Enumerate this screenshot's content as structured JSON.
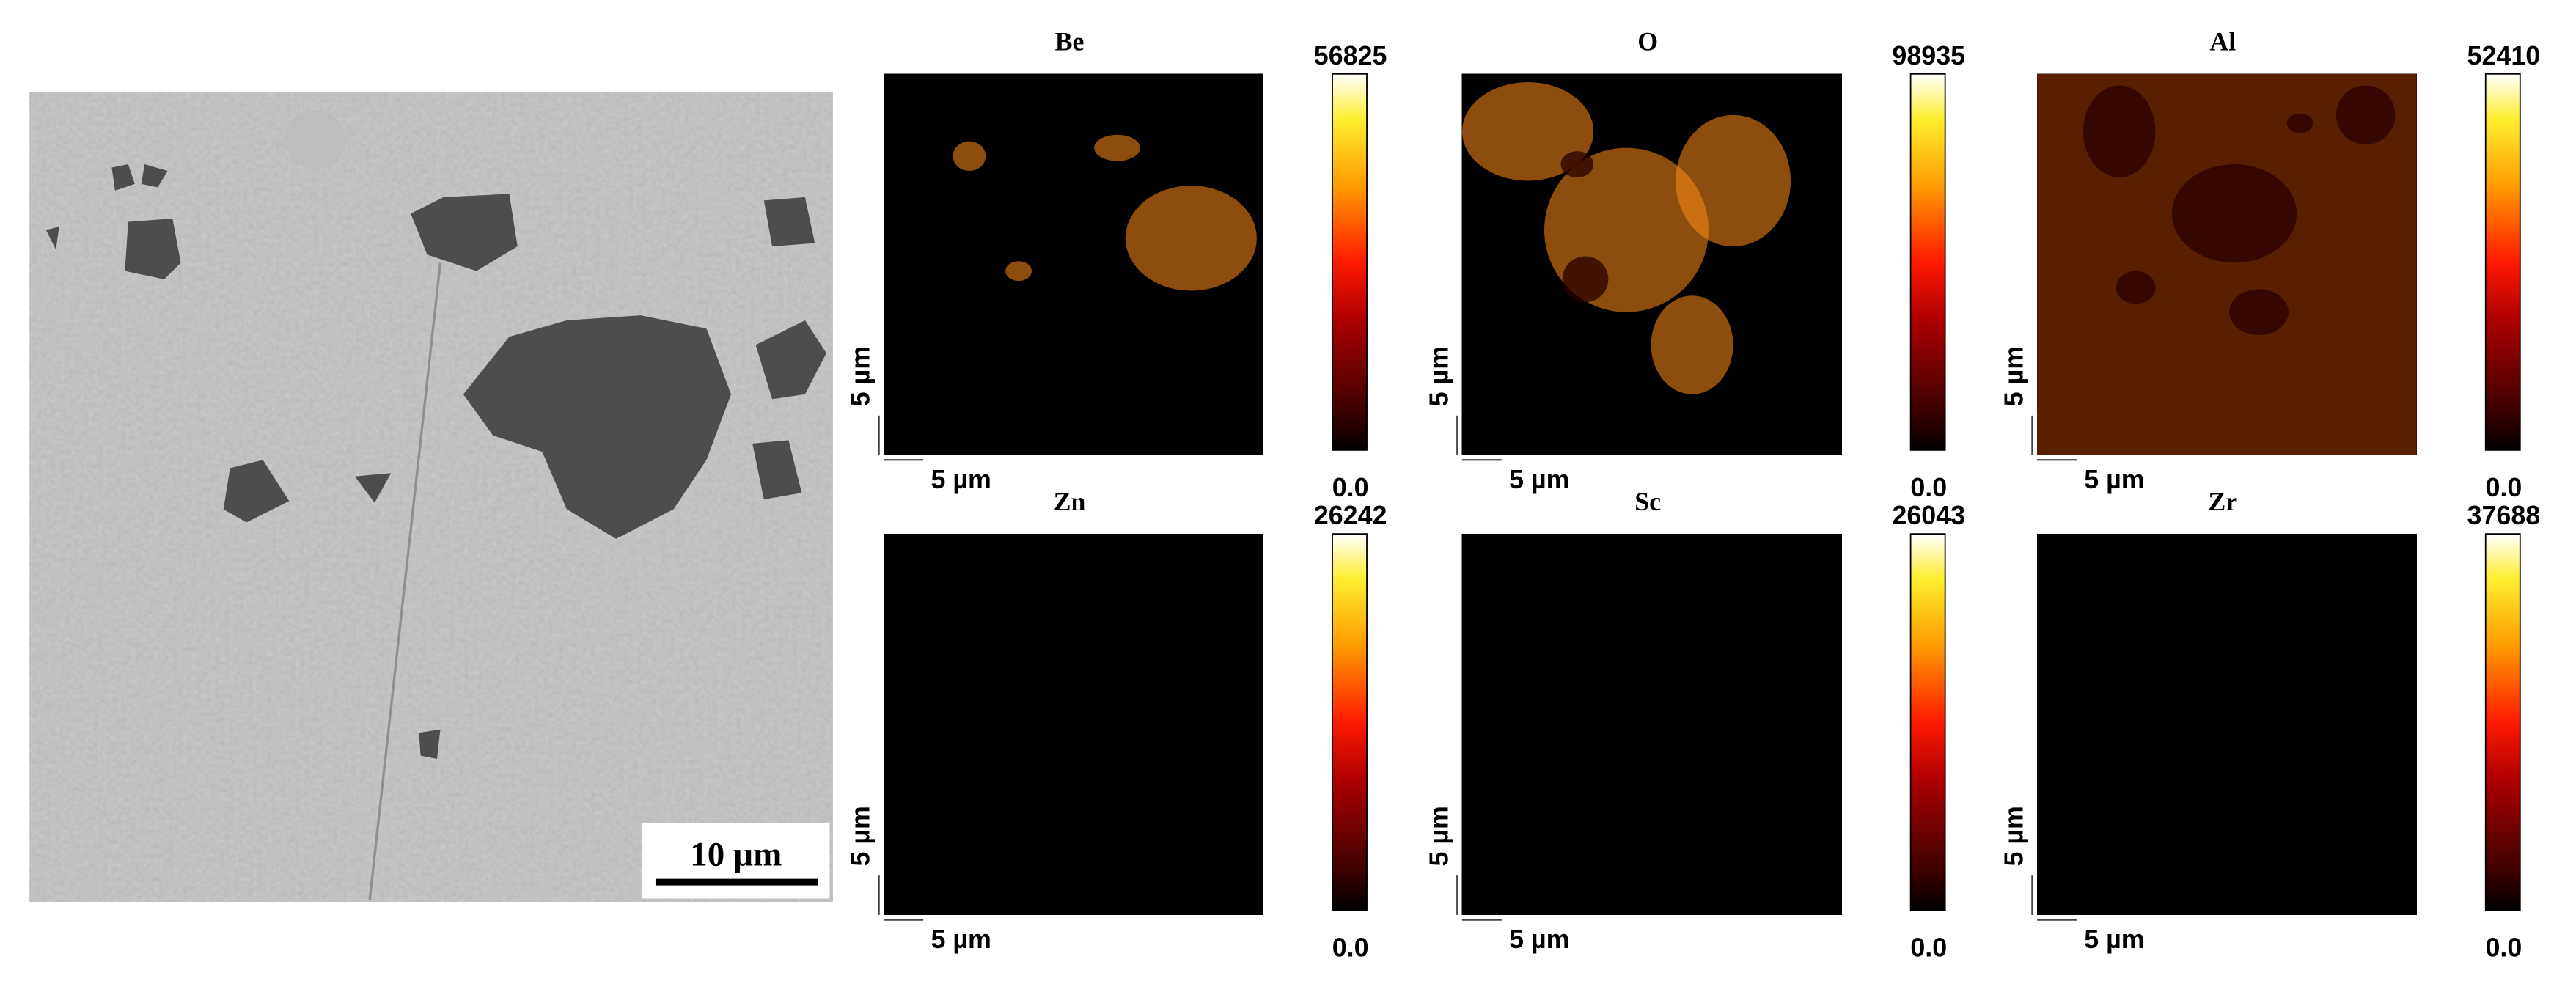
{
  "sem_image": {
    "scale_bar_label": "10 µm"
  },
  "maps": [
    {
      "element": "Be",
      "max_label": "56825",
      "min_label": "0.0",
      "x_scale_label": "5 µm",
      "y_scale_label": "5 µm"
    },
    {
      "element": "O",
      "max_label": "98935",
      "min_label": "0.0",
      "x_scale_label": "5 µm",
      "y_scale_label": "5 µm"
    },
    {
      "element": "Al",
      "max_label": "52410",
      "min_label": "0.0",
      "x_scale_label": "5 µm",
      "y_scale_label": "5 µm"
    },
    {
      "element": "Zn",
      "max_label": "26242",
      "min_label": "0.0",
      "x_scale_label": "5 µm",
      "y_scale_label": "5 µm"
    },
    {
      "element": "Sc",
      "max_label": "26043",
      "min_label": "0.0",
      "x_scale_label": "5 µm",
      "y_scale_label": "5 µm"
    },
    {
      "element": "Zr",
      "max_label": "37688",
      "min_label": "0.0",
      "x_scale_label": "5 µm",
      "y_scale_label": "5 µm"
    }
  ]
}
